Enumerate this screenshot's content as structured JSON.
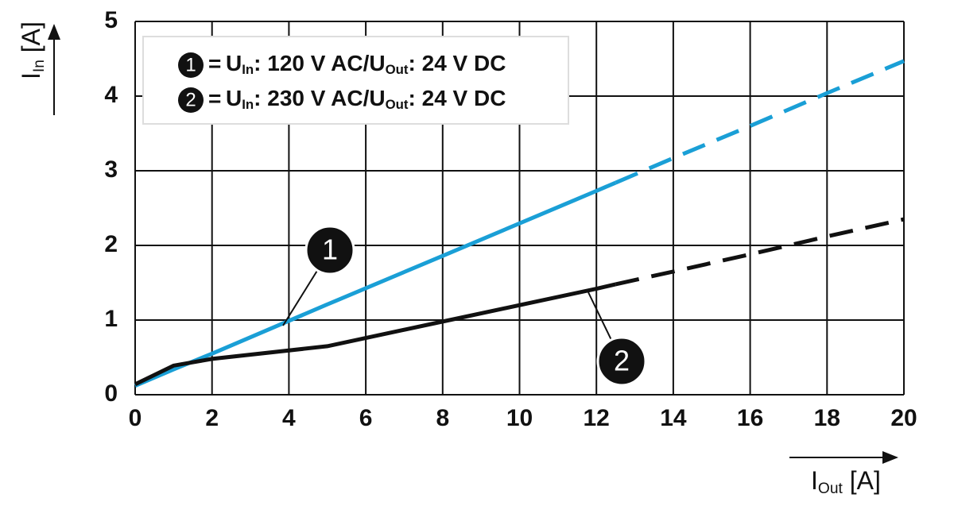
{
  "chart_data": {
    "type": "line",
    "x_label": [
      "I",
      "Out",
      " [A]"
    ],
    "y_label": [
      "I",
      "In",
      " [A]"
    ],
    "x": [
      0,
      1,
      2,
      5,
      8,
      12,
      12.5,
      14,
      16,
      18,
      20
    ],
    "series": [
      {
        "marker": "1",
        "name": [
          "U",
          "In",
          ": 120 V AC/U",
          "Out",
          ": 24 V DC"
        ],
        "color": "#1a9fd6",
        "dash_from": 12.5,
        "values": [
          0.12,
          0.34,
          0.55,
          1.21,
          1.86,
          2.73,
          2.84,
          3.17,
          3.6,
          4.04,
          4.47
        ]
      },
      {
        "marker": "2",
        "name": [
          "U",
          "In",
          ": 230 V AC/U",
          "Out",
          ": 24 V DC"
        ],
        "color": "#111111",
        "dash_from": 12.5,
        "values": [
          0.14,
          0.39,
          0.48,
          0.65,
          0.98,
          1.42,
          1.48,
          1.65,
          1.88,
          2.12,
          2.35
        ]
      }
    ],
    "xlim": [
      0,
      20
    ],
    "xticks": [
      0,
      2,
      4,
      6,
      8,
      10,
      12,
      14,
      16,
      18,
      20
    ],
    "ylim": [
      0,
      5
    ],
    "yticks": [
      0,
      1,
      2,
      3,
      4,
      5
    ],
    "grid": true
  }
}
